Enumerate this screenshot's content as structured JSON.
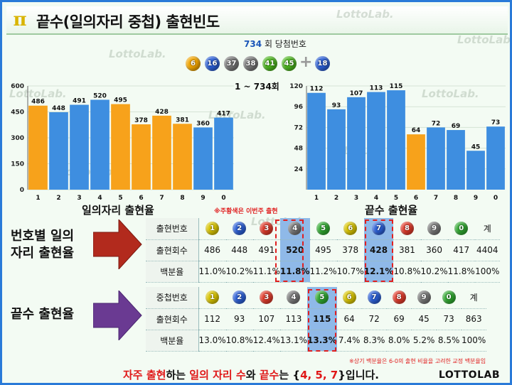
{
  "title": "끝수(일의자리 중첩) 출현빈도",
  "watermark": "LottoLab.",
  "draw": {
    "round_number": "734",
    "round_label": "회 당첨번호",
    "balls": [
      "6",
      "16",
      "37",
      "38",
      "41",
      "45"
    ],
    "ball_colors": [
      "#f0a400",
      "#2b5fd6",
      "#777777",
      "#777777",
      "#4cb51e",
      "#4cb51e"
    ],
    "bonus": "18",
    "bonus_color": "#2b5fd6",
    "plus": "+"
  },
  "range_label": "1 ~ 734회",
  "chart_data": [
    {
      "type": "bar",
      "title": "일의자리 출현율",
      "categories": [
        "1",
        "2",
        "3",
        "4",
        "5",
        "6",
        "7",
        "8",
        "9",
        "0"
      ],
      "values": [
        486,
        448,
        491,
        520,
        495,
        378,
        428,
        381,
        360,
        417
      ],
      "bar_colors": [
        "#f7a21b",
        "#3e8ee0",
        "#3e8ee0",
        "#3e8ee0",
        "#f7a21b",
        "#f7a21b",
        "#f7a21b",
        "#f7a21b",
        "#3e8ee0",
        "#3e8ee0"
      ],
      "yticks": [
        "0",
        "150",
        "300",
        "450",
        "600"
      ],
      "ylim": [
        0,
        600
      ]
    },
    {
      "type": "bar",
      "title": "끝수 출현율",
      "categories": [
        "1",
        "2",
        "3",
        "4",
        "5",
        "6",
        "7",
        "8",
        "9",
        "0"
      ],
      "values": [
        112,
        93,
        107,
        113,
        115,
        64,
        72,
        69,
        45,
        73
      ],
      "bar_colors": [
        "#3e8ee0",
        "#3e8ee0",
        "#3e8ee0",
        "#3e8ee0",
        "#3e8ee0",
        "#f7a21b",
        "#3e8ee0",
        "#3e8ee0",
        "#3e8ee0",
        "#3e8ee0"
      ],
      "yticks": [
        "24",
        "48",
        "72",
        "96",
        "120"
      ],
      "ylim": [
        0,
        120
      ]
    }
  ],
  "note_orange": "※주황색은 이번주 출현",
  "arrow1_label_line1": "번호별 일의",
  "arrow1_label_line2": "자리 출현율",
  "arrow2_label": "끝수 출현율",
  "table1": {
    "row_headers": [
      "출현번호",
      "출현회수",
      "백분율"
    ],
    "balls": [
      "1",
      "2",
      "3",
      "4",
      "5",
      "6",
      "7",
      "8",
      "9",
      "0"
    ],
    "ball_colors": [
      "#d8c400",
      "#2b5fd6",
      "#e03a2a",
      "#777777",
      "#2fa82f",
      "#d8c400",
      "#2b5fd6",
      "#e03a2a",
      "#777777",
      "#2fa82f"
    ],
    "total_label": "계",
    "counts": [
      "486",
      "448",
      "491",
      "520",
      "495",
      "378",
      "428",
      "381",
      "360",
      "417",
      "4404"
    ],
    "percents": [
      "11.0%",
      "10.2%",
      "11.1%",
      "11.8%",
      "11.2%",
      "10.7%",
      "12.1%",
      "10.8%",
      "10.2%",
      "11.8%",
      "100%"
    ]
  },
  "table2": {
    "row_headers": [
      "중첩번호",
      "출현회수",
      "백분율"
    ],
    "balls": [
      "1",
      "2",
      "3",
      "4",
      "5",
      "6",
      "7",
      "8",
      "9",
      "0"
    ],
    "total_label": "계",
    "counts": [
      "112",
      "93",
      "107",
      "113",
      "115",
      "64",
      "72",
      "69",
      "45",
      "73",
      "863"
    ],
    "percents": [
      "13.0%",
      "10.8%",
      "12.4%",
      "13.1%",
      "13.3%",
      "7.4%",
      "8.3%",
      "8.0%",
      "5.2%",
      "8.5%",
      "100%"
    ]
  },
  "note_bottom": "※상기 백분율은 6-0의 출현 비율을 고려한 교정 백분율임",
  "summary": {
    "p1": "자주 출현",
    "p2": "하는 ",
    "p3": "일의 자리 수",
    "p4": "와 ",
    "p5": "끝수",
    "p6": "는 {",
    "p7": "4, 5, 7",
    "p8": "}입니다."
  },
  "brand": "LOTTOLAB"
}
